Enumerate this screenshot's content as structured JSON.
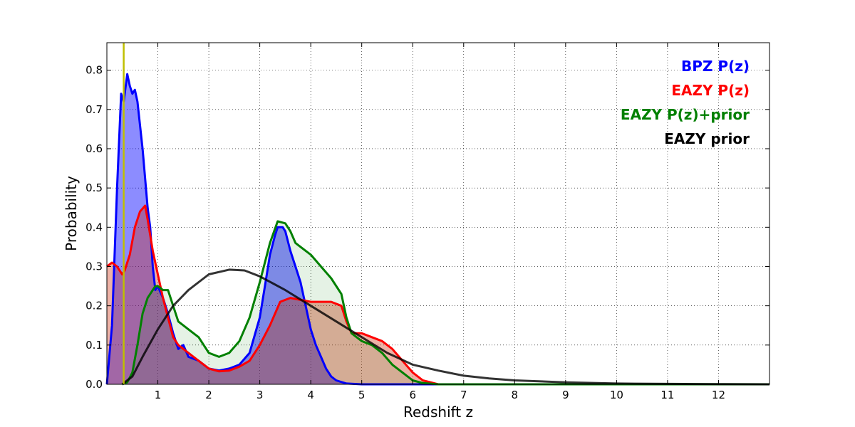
{
  "chart_data": {
    "type": "area",
    "xlabel": "Redshift z",
    "ylabel": "Probability",
    "xlim": [
      0,
      13
    ],
    "ylim": [
      0,
      0.87
    ],
    "xticks": [
      1,
      2,
      3,
      4,
      5,
      6,
      7,
      8,
      9,
      10,
      11,
      12
    ],
    "yticks": [
      0.0,
      0.1,
      0.2,
      0.3,
      0.4,
      0.5,
      0.6,
      0.7,
      0.8
    ],
    "ytick_labels": [
      "0.0",
      "0.1",
      "0.2",
      "0.3",
      "0.4",
      "0.5",
      "0.6",
      "0.7",
      "0.8"
    ],
    "grid": true,
    "legend_position": "top-right",
    "vertical_line": {
      "x": 0.33,
      "color": "#bfbf00"
    },
    "series": [
      {
        "name": "BPZ P(z)",
        "color": "#0000ff",
        "fill": "#0000ff",
        "fill_opacity": 0.45,
        "points": [
          [
            0,
            0
          ],
          [
            0.1,
            0.15
          ],
          [
            0.2,
            0.5
          ],
          [
            0.28,
            0.74
          ],
          [
            0.33,
            0.72
          ],
          [
            0.4,
            0.79
          ],
          [
            0.45,
            0.76
          ],
          [
            0.5,
            0.74
          ],
          [
            0.55,
            0.75
          ],
          [
            0.6,
            0.72
          ],
          [
            0.7,
            0.6
          ],
          [
            0.8,
            0.45
          ],
          [
            0.85,
            0.4
          ],
          [
            0.9,
            0.3
          ],
          [
            0.95,
            0.24
          ],
          [
            1.0,
            0.25
          ],
          [
            1.1,
            0.22
          ],
          [
            1.2,
            0.18
          ],
          [
            1.3,
            0.13
          ],
          [
            1.4,
            0.09
          ],
          [
            1.5,
            0.1
          ],
          [
            1.6,
            0.07
          ],
          [
            1.8,
            0.06
          ],
          [
            2.0,
            0.04
          ],
          [
            2.2,
            0.035
          ],
          [
            2.4,
            0.04
          ],
          [
            2.6,
            0.05
          ],
          [
            2.8,
            0.08
          ],
          [
            3.0,
            0.17
          ],
          [
            3.1,
            0.25
          ],
          [
            3.2,
            0.33
          ],
          [
            3.3,
            0.38
          ],
          [
            3.35,
            0.4
          ],
          [
            3.45,
            0.4
          ],
          [
            3.5,
            0.39
          ],
          [
            3.6,
            0.34
          ],
          [
            3.7,
            0.3
          ],
          [
            3.8,
            0.26
          ],
          [
            3.9,
            0.2
          ],
          [
            4.0,
            0.14
          ],
          [
            4.1,
            0.1
          ],
          [
            4.2,
            0.07
          ],
          [
            4.3,
            0.04
          ],
          [
            4.4,
            0.02
          ],
          [
            4.5,
            0.01
          ],
          [
            4.7,
            0.002
          ],
          [
            5.0,
            0
          ],
          [
            13,
            0
          ]
        ]
      },
      {
        "name": "EAZY P(z)",
        "color": "#ff0000",
        "fill": "#cc2200",
        "fill_opacity": 0.35,
        "points": [
          [
            0,
            0.3
          ],
          [
            0.1,
            0.31
          ],
          [
            0.2,
            0.3
          ],
          [
            0.3,
            0.28
          ],
          [
            0.35,
            0.29
          ],
          [
            0.45,
            0.33
          ],
          [
            0.55,
            0.4
          ],
          [
            0.65,
            0.44
          ],
          [
            0.75,
            0.455
          ],
          [
            0.8,
            0.42
          ],
          [
            0.9,
            0.34
          ],
          [
            1.0,
            0.28
          ],
          [
            1.1,
            0.22
          ],
          [
            1.2,
            0.17
          ],
          [
            1.3,
            0.12
          ],
          [
            1.4,
            0.1
          ],
          [
            1.5,
            0.09
          ],
          [
            1.7,
            0.07
          ],
          [
            2.0,
            0.04
          ],
          [
            2.2,
            0.033
          ],
          [
            2.4,
            0.035
          ],
          [
            2.6,
            0.045
          ],
          [
            2.8,
            0.06
          ],
          [
            3.0,
            0.1
          ],
          [
            3.2,
            0.15
          ],
          [
            3.4,
            0.21
          ],
          [
            3.6,
            0.22
          ],
          [
            3.8,
            0.215
          ],
          [
            4.0,
            0.21
          ],
          [
            4.2,
            0.21
          ],
          [
            4.4,
            0.21
          ],
          [
            4.6,
            0.2
          ],
          [
            4.7,
            0.16
          ],
          [
            4.8,
            0.13
          ],
          [
            5.0,
            0.13
          ],
          [
            5.2,
            0.12
          ],
          [
            5.4,
            0.11
          ],
          [
            5.6,
            0.09
          ],
          [
            5.8,
            0.06
          ],
          [
            6.0,
            0.03
          ],
          [
            6.2,
            0.01
          ],
          [
            6.5,
            0
          ],
          [
            13,
            0
          ]
        ]
      },
      {
        "name": "EAZY P(z)+prior",
        "color": "#008000",
        "fill": "#008000",
        "fill_opacity": 0.1,
        "points": [
          [
            0.3,
            0
          ],
          [
            0.4,
            0.005
          ],
          [
            0.5,
            0.03
          ],
          [
            0.6,
            0.1
          ],
          [
            0.7,
            0.18
          ],
          [
            0.8,
            0.22
          ],
          [
            0.9,
            0.24
          ],
          [
            0.95,
            0.25
          ],
          [
            1.0,
            0.25
          ],
          [
            1.1,
            0.24
          ],
          [
            1.2,
            0.24
          ],
          [
            1.3,
            0.2
          ],
          [
            1.4,
            0.16
          ],
          [
            1.5,
            0.15
          ],
          [
            1.6,
            0.14
          ],
          [
            1.8,
            0.12
          ],
          [
            2.0,
            0.08
          ],
          [
            2.2,
            0.07
          ],
          [
            2.4,
            0.08
          ],
          [
            2.6,
            0.11
          ],
          [
            2.8,
            0.17
          ],
          [
            3.0,
            0.26
          ],
          [
            3.2,
            0.36
          ],
          [
            3.35,
            0.415
          ],
          [
            3.5,
            0.41
          ],
          [
            3.6,
            0.39
          ],
          [
            3.7,
            0.36
          ],
          [
            3.8,
            0.35
          ],
          [
            4.0,
            0.33
          ],
          [
            4.2,
            0.3
          ],
          [
            4.4,
            0.27
          ],
          [
            4.6,
            0.23
          ],
          [
            4.7,
            0.17
          ],
          [
            4.8,
            0.13
          ],
          [
            5.0,
            0.11
          ],
          [
            5.2,
            0.1
          ],
          [
            5.4,
            0.08
          ],
          [
            5.6,
            0.05
          ],
          [
            5.8,
            0.03
          ],
          [
            6.0,
            0.01
          ],
          [
            6.2,
            0.003
          ],
          [
            6.5,
            0
          ],
          [
            13,
            0
          ]
        ]
      },
      {
        "name": "EAZY prior",
        "color": "#000000",
        "fill": "none",
        "fill_opacity": 0,
        "points": [
          [
            0.3,
            0
          ],
          [
            0.5,
            0.02
          ],
          [
            0.7,
            0.07
          ],
          [
            1.0,
            0.14
          ],
          [
            1.3,
            0.2
          ],
          [
            1.6,
            0.24
          ],
          [
            2.0,
            0.28
          ],
          [
            2.4,
            0.292
          ],
          [
            2.7,
            0.29
          ],
          [
            3.0,
            0.275
          ],
          [
            3.5,
            0.24
          ],
          [
            4.0,
            0.2
          ],
          [
            4.5,
            0.16
          ],
          [
            5.0,
            0.12
          ],
          [
            5.5,
            0.08
          ],
          [
            6.0,
            0.05
          ],
          [
            6.5,
            0.035
          ],
          [
            7.0,
            0.022
          ],
          [
            7.5,
            0.015
          ],
          [
            8.0,
            0.01
          ],
          [
            9.0,
            0.005
          ],
          [
            10.0,
            0.002
          ],
          [
            11.0,
            0.001
          ],
          [
            12.0,
            0.0005
          ],
          [
            13.0,
            0
          ]
        ]
      }
    ]
  }
}
